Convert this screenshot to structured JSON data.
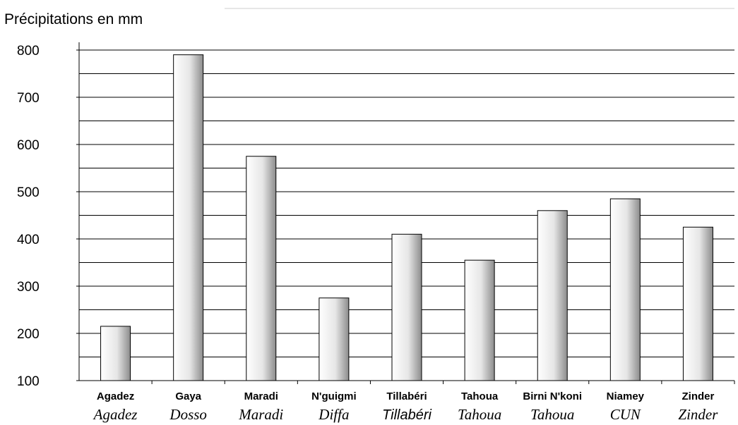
{
  "chart_data": {
    "type": "bar",
    "ylabel": "Précipitations en mm",
    "ylim": [
      100,
      800
    ],
    "yticks": [
      100,
      200,
      300,
      400,
      500,
      600,
      700,
      800
    ],
    "grid": true,
    "categories": [
      "Agadez",
      "Gaya",
      "Maradi",
      "N'guigmi",
      "Tillabéri",
      "Tahoua",
      "Birni N'koni",
      "Niamey",
      "Zinder"
    ],
    "regions": [
      "Agadez",
      "Dosso",
      "Maradi",
      "Diffa",
      "Tillabéri",
      "Tahoua",
      "Tahoua",
      "CUN",
      "Zinder"
    ],
    "series": [
      {
        "values": [
          215,
          790,
          575,
          275,
          410,
          355,
          460,
          485,
          425
        ]
      }
    ]
  }
}
